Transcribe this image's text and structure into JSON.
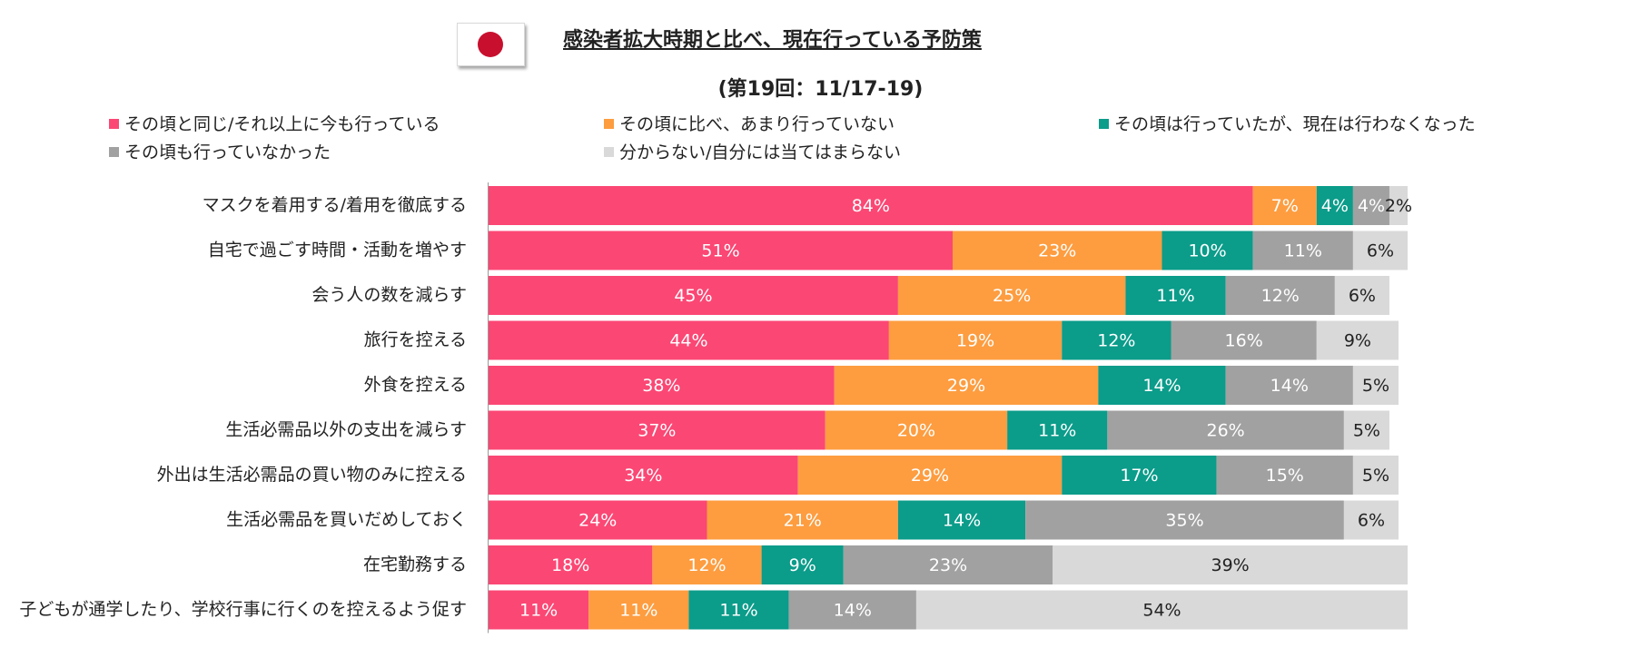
{
  "title": "感染者拡大時期と比べ、現在行っている予防策",
  "subtitle": "(第19回：11/17-19)",
  "flag_icon": "japan-flag-icon",
  "chart_data": {
    "type": "bar",
    "orientation": "horizontal",
    "stacked": true,
    "percent": true,
    "legend": "top",
    "grid": false,
    "xlim": [
      0,
      100
    ],
    "categories": [
      "マスクを着用する/着用を徹底する",
      "自宅で過ごす時間・活動を増やす",
      "会う人の数を減らす",
      "旅行を控える",
      "外食を控える",
      "生活必需品以外の支出を減らす",
      "外出は生活必需品の買い物のみに控える",
      "生活必需品を買いだめしておく",
      "在宅勤務する",
      "子どもが通学したり、学校行事に行くのを控えるよう促す"
    ],
    "series": [
      {
        "name": "その頃と同じ/それ以上に今も行っている",
        "color": "#fb4774",
        "values": [
          84,
          51,
          45,
          44,
          38,
          37,
          34,
          24,
          18,
          11
        ]
      },
      {
        "name": "その頃に比べ、あまり行っていない",
        "color": "#fd9d40",
        "values": [
          7,
          23,
          25,
          19,
          29,
          20,
          29,
          21,
          12,
          11
        ]
      },
      {
        "name": "その頃は行っていたが、現在は行わなくなった",
        "color": "#0b9c8a",
        "values": [
          4,
          10,
          11,
          12,
          14,
          11,
          17,
          14,
          9,
          11
        ]
      },
      {
        "name": "その頃も行っていなかった",
        "color": "#a1a1a1",
        "values": [
          4,
          11,
          12,
          16,
          14,
          26,
          15,
          35,
          23,
          14
        ]
      },
      {
        "name": "分からない/自分には当てはまらない",
        "color": "#d9d9d9",
        "values": [
          2,
          6,
          6,
          9,
          5,
          5,
          5,
          6,
          39,
          54
        ]
      }
    ]
  }
}
